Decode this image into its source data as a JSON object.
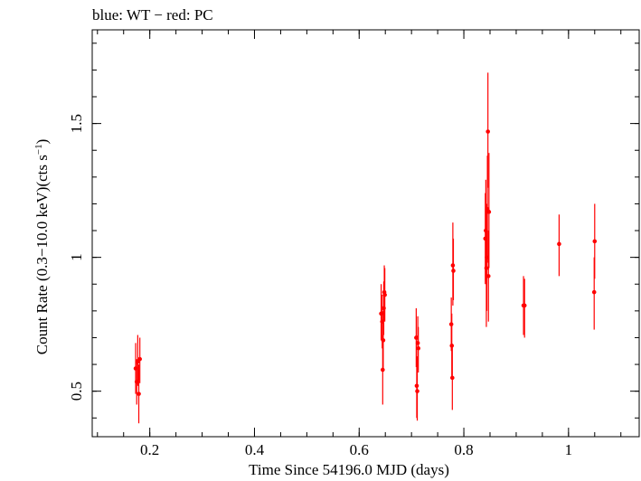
{
  "chart_data": {
    "type": "scatter",
    "title": "blue: WT − red: PC",
    "xlabel": "Time Since 54196.0 MJD (days)",
    "ylabel_main": "Count Rate (0.3−10.0 keV)(cts s",
    "ylabel_sup": "−1",
    "ylabel_close": ")",
    "xlim": [
      0.09,
      1.135
    ],
    "ylim": [
      0.33,
      1.85
    ],
    "xticks": [
      {
        "v": 0.2,
        "label": "0.2"
      },
      {
        "v": 0.4,
        "label": "0.4"
      },
      {
        "v": 0.6,
        "label": "0.6"
      },
      {
        "v": 0.8,
        "label": "0.8"
      },
      {
        "v": 1.0,
        "label": "1"
      }
    ],
    "yticks": [
      {
        "v": 0.5,
        "label": "0.5"
      },
      {
        "v": 1.0,
        "label": "1"
      },
      {
        "v": 1.5,
        "label": "1.5"
      }
    ],
    "x_minor_step": 0.05,
    "y_minor_step": 0.1,
    "grid": false,
    "series": [
      {
        "color": "#ff0000",
        "points": [
          {
            "x": 0.173,
            "y": 0.585,
            "lo": 0.49,
            "hi": 0.68
          },
          {
            "x": 0.175,
            "y": 0.535,
            "lo": 0.45,
            "hi": 0.62
          },
          {
            "x": 0.177,
            "y": 0.61,
            "lo": 0.52,
            "hi": 0.71
          },
          {
            "x": 0.179,
            "y": 0.49,
            "lo": 0.38,
            "hi": 0.6
          },
          {
            "x": 0.181,
            "y": 0.62,
            "lo": 0.53,
            "hi": 0.7
          },
          {
            "x": 0.642,
            "y": 0.79,
            "lo": 0.69,
            "hi": 0.9
          },
          {
            "x": 0.644,
            "y": 0.76,
            "lo": 0.66,
            "hi": 0.86
          },
          {
            "x": 0.645,
            "y": 0.58,
            "lo": 0.45,
            "hi": 0.71
          },
          {
            "x": 0.646,
            "y": 0.69,
            "lo": 0.58,
            "hi": 0.8
          },
          {
            "x": 0.647,
            "y": 0.81,
            "lo": 0.71,
            "hi": 0.91
          },
          {
            "x": 0.648,
            "y": 0.87,
            "lo": 0.77,
            "hi": 0.97
          },
          {
            "x": 0.649,
            "y": 0.86,
            "lo": 0.76,
            "hi": 0.96
          },
          {
            "x": 0.709,
            "y": 0.7,
            "lo": 0.59,
            "hi": 0.81
          },
          {
            "x": 0.71,
            "y": 0.52,
            "lo": 0.4,
            "hi": 0.63
          },
          {
            "x": 0.711,
            "y": 0.5,
            "lo": 0.39,
            "hi": 0.61
          },
          {
            "x": 0.712,
            "y": 0.68,
            "lo": 0.58,
            "hi": 0.78
          },
          {
            "x": 0.713,
            "y": 0.66,
            "lo": 0.57,
            "hi": 0.74
          },
          {
            "x": 0.776,
            "y": 0.75,
            "lo": 0.65,
            "hi": 0.85
          },
          {
            "x": 0.777,
            "y": 0.67,
            "lo": 0.55,
            "hi": 0.79
          },
          {
            "x": 0.778,
            "y": 0.55,
            "lo": 0.43,
            "hi": 0.67
          },
          {
            "x": 0.779,
            "y": 0.97,
            "lo": 0.82,
            "hi": 1.13
          },
          {
            "x": 0.78,
            "y": 0.95,
            "lo": 0.84,
            "hi": 1.07
          },
          {
            "x": 0.841,
            "y": 1.07,
            "lo": 0.9,
            "hi": 1.24
          },
          {
            "x": 0.842,
            "y": 1.1,
            "lo": 0.91,
            "hi": 1.29
          },
          {
            "x": 0.843,
            "y": 0.96,
            "lo": 0.74,
            "hi": 1.19
          },
          {
            "x": 0.844,
            "y": 1.0,
            "lo": 0.8,
            "hi": 1.2
          },
          {
            "x": 0.845,
            "y": 1.18,
            "lo": 0.98,
            "hi": 1.38
          },
          {
            "x": 0.846,
            "y": 1.47,
            "lo": 1.26,
            "hi": 1.69
          },
          {
            "x": 0.847,
            "y": 0.93,
            "lo": 0.76,
            "hi": 1.1
          },
          {
            "x": 0.848,
            "y": 1.17,
            "lo": 0.96,
            "hi": 1.39
          },
          {
            "x": 0.914,
            "y": 0.82,
            "lo": 0.71,
            "hi": 0.93
          },
          {
            "x": 0.916,
            "y": 0.82,
            "lo": 0.7,
            "hi": 0.92
          },
          {
            "x": 0.982,
            "y": 1.05,
            "lo": 0.93,
            "hi": 1.16
          },
          {
            "x": 1.049,
            "y": 0.87,
            "lo": 0.73,
            "hi": 1.0
          },
          {
            "x": 1.05,
            "y": 1.06,
            "lo": 0.92,
            "hi": 1.2
          }
        ]
      }
    ]
  }
}
